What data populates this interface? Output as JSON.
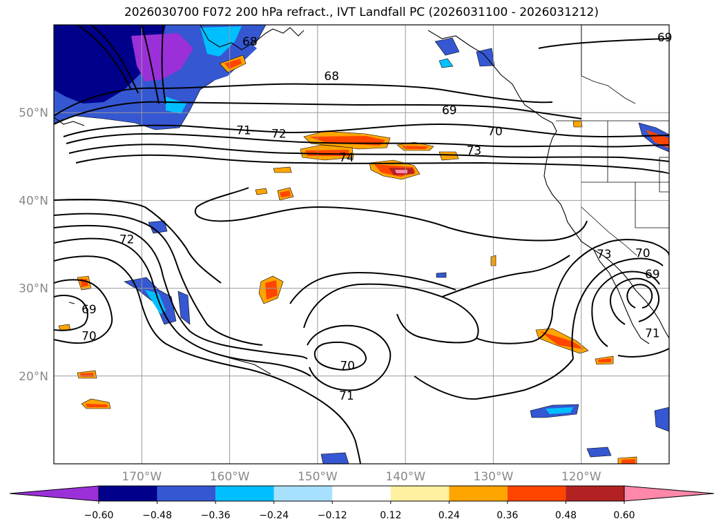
{
  "title": "2026030700 F072 200 hPa refract., IVT Landfall PC (2026031100 - 2026031212)",
  "map": {
    "lon_range": [
      -180,
      -110
    ],
    "lat_range": [
      10,
      60
    ],
    "grid": true,
    "lon_ticks": [
      {
        "lon": -170,
        "label": "170°W"
      },
      {
        "lon": -160,
        "label": "160°W"
      },
      {
        "lon": -150,
        "label": "150°W"
      },
      {
        "lon": -140,
        "label": "140°W"
      },
      {
        "lon": -130,
        "label": "130°W"
      },
      {
        "lon": -120,
        "label": "120°W"
      }
    ],
    "lat_ticks": [
      {
        "lat": 50,
        "label": "50°N"
      },
      {
        "lat": 40,
        "label": "40°N"
      },
      {
        "lat": 30,
        "label": "30°N"
      },
      {
        "lat": 20,
        "label": "20°N"
      }
    ],
    "contour_labels": [
      {
        "text": "69",
        "lon": -110.5,
        "lat": 58.6
      },
      {
        "text": "68",
        "lon": -157.7,
        "lat": 58.1
      },
      {
        "text": "68",
        "lon": -148.4,
        "lat": 54.2
      },
      {
        "text": "69",
        "lon": -135.0,
        "lat": 50.3
      },
      {
        "text": "71",
        "lon": -158.4,
        "lat": 48.0
      },
      {
        "text": "72",
        "lon": -154.4,
        "lat": 47.6
      },
      {
        "text": "70",
        "lon": -129.8,
        "lat": 47.9
      },
      {
        "text": "73",
        "lon": -132.2,
        "lat": 45.7
      },
      {
        "text": "74",
        "lon": -146.7,
        "lat": 44.9
      },
      {
        "text": "72",
        "lon": -171.7,
        "lat": 35.6
      },
      {
        "text": "73",
        "lon": -117.4,
        "lat": 33.9
      },
      {
        "text": "70",
        "lon": -113.0,
        "lat": 34.0
      },
      {
        "text": "69",
        "lon": -111.9,
        "lat": 31.6
      },
      {
        "text": "69",
        "lon": -176.0,
        "lat": 27.6
      },
      {
        "text": "70",
        "lon": -176.0,
        "lat": 24.6
      },
      {
        "text": "71",
        "lon": -111.9,
        "lat": 24.9
      },
      {
        "text": "70",
        "lon": -146.6,
        "lat": 21.2
      },
      {
        "text": "71",
        "lon": -146.7,
        "lat": 17.8
      }
    ],
    "shading_palette": {
      "neg_strong": "#9b30d9",
      "neg_060": "#00008b",
      "neg_048": "#3557d1",
      "neg_036": "#00bfff",
      "neg_024": "#a8e0ff",
      "pos_012": "#fff0a0",
      "pos_024": "#ffa500",
      "pos_036": "#ff4500",
      "pos_048": "#b22222",
      "pos_060": "#ff88aa"
    }
  },
  "colorbar": {
    "colors": [
      "#9b30d9",
      "#00008b",
      "#3557d1",
      "#00bfff",
      "#a8e0ff",
      "#ffffff",
      "#fff0a0",
      "#ffa500",
      "#ff4500",
      "#b22222",
      "#ff88aa"
    ],
    "tick_labels": [
      "−0.60",
      "−0.48",
      "−0.36",
      "−0.24",
      "−0.12",
      "0.12",
      "0.24",
      "0.36",
      "0.48",
      "0.60"
    ]
  }
}
